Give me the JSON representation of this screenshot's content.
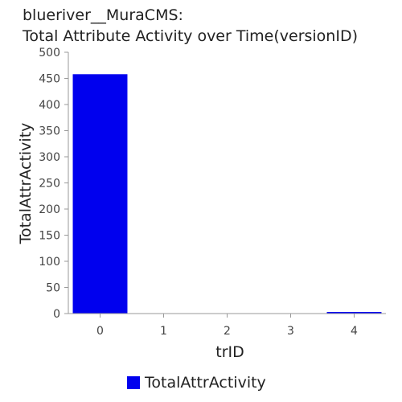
{
  "chart_data": {
    "type": "bar",
    "title_line1": "blueriver__MuraCMS:",
    "title_line2": "Total Attribute Activity over Time(versionID)",
    "xlabel": "trID",
    "ylabel": "TotalAttrActivity",
    "categories": [
      "0",
      "1",
      "2",
      "3",
      "4"
    ],
    "series": [
      {
        "name": "TotalAttrActivity",
        "color": "#0000ee",
        "values": [
          458,
          0,
          0,
          0,
          3
        ]
      }
    ],
    "ylim": [
      0,
      500
    ],
    "yticks": [
      0,
      50,
      100,
      150,
      200,
      250,
      300,
      350,
      400,
      450,
      500
    ],
    "grid": false,
    "legend": "bottom"
  }
}
